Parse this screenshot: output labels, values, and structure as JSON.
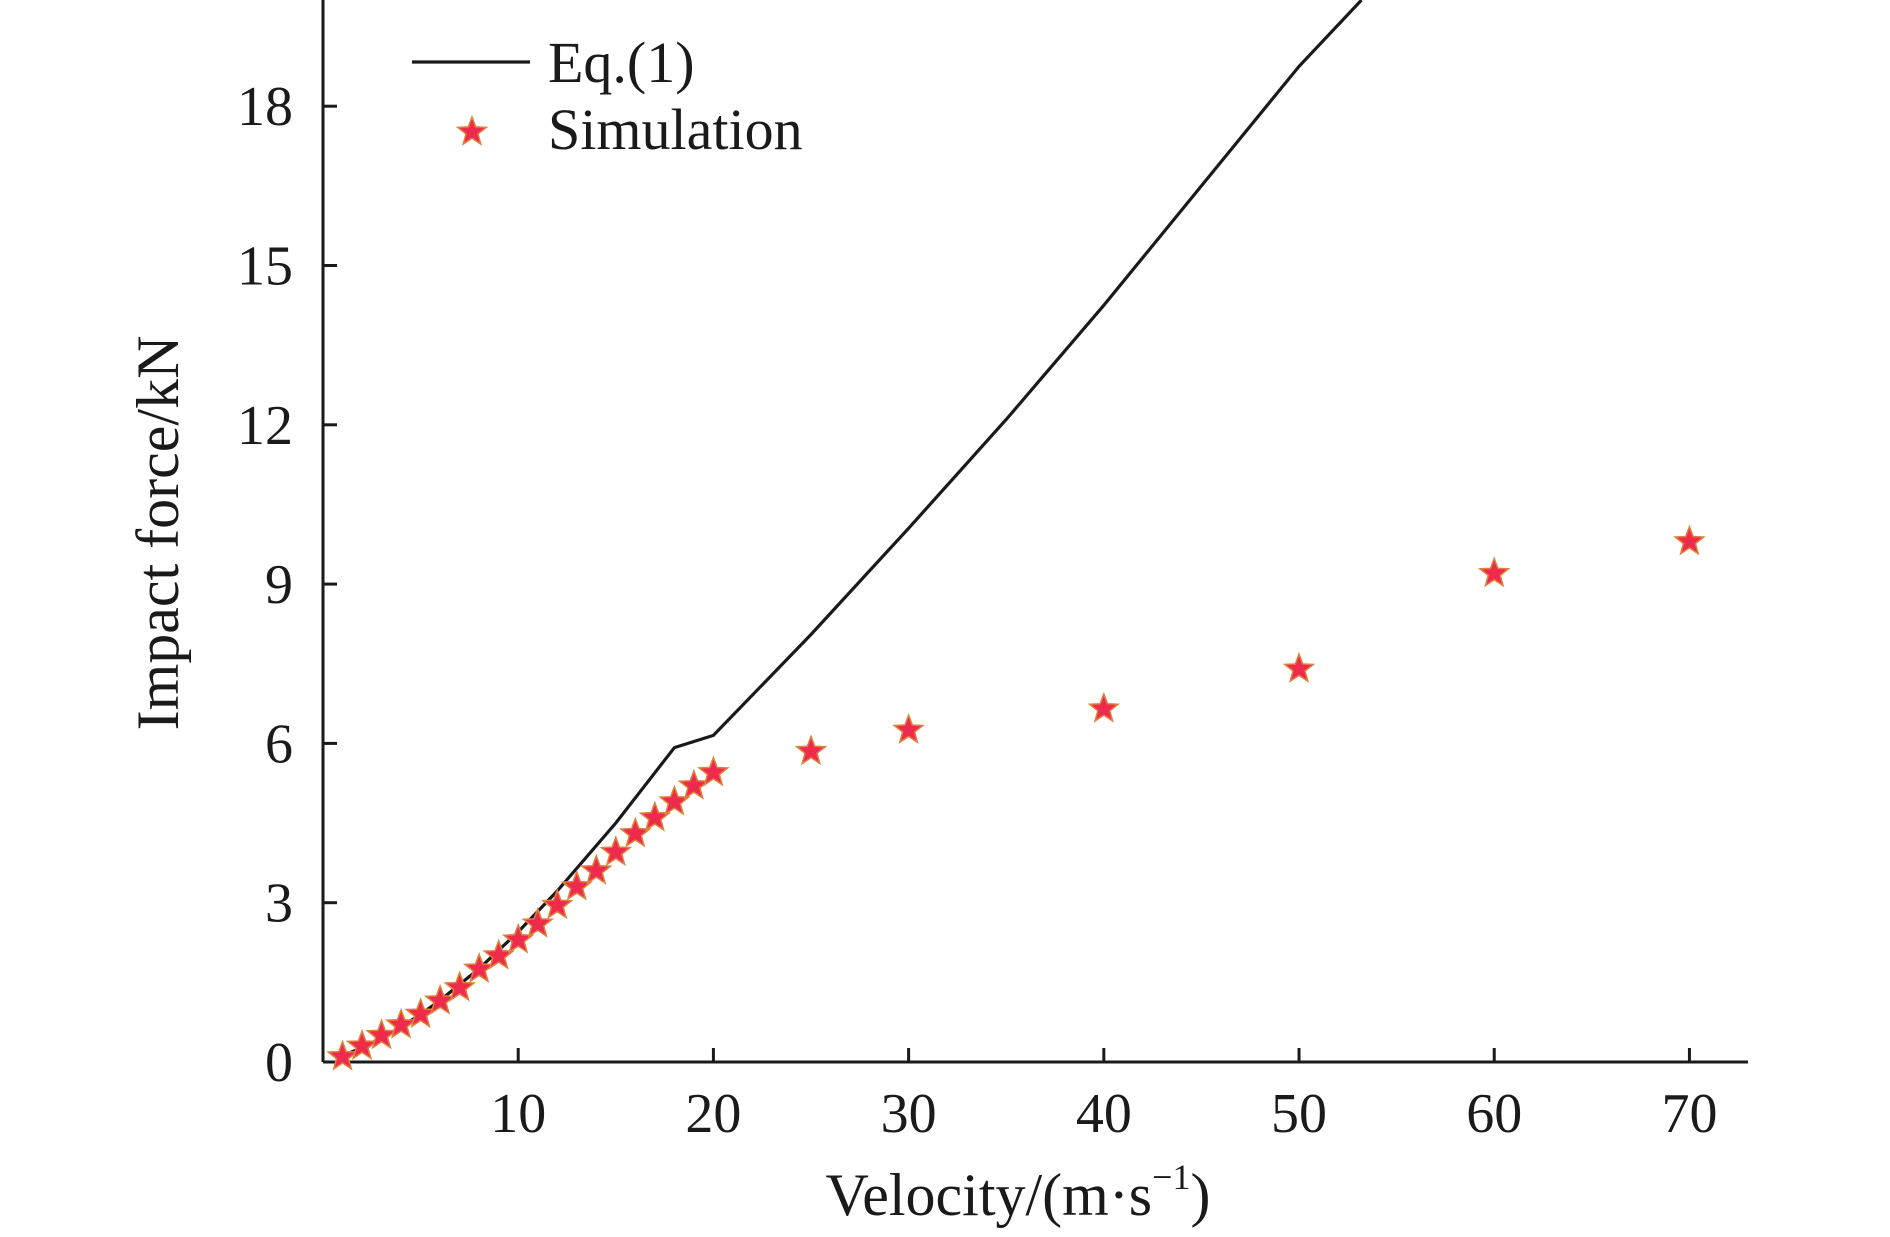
{
  "chart_data": {
    "type": "scatter",
    "title": "",
    "xlabel": "Velocity/(m·s",
    "xlabel_sup": "−1",
    "xlabel_close": ")",
    "ylabel": "Impact force/kN",
    "xlim": [
      0,
      73
    ],
    "ylim": [
      0,
      20
    ],
    "xticks": [
      10,
      20,
      30,
      40,
      50,
      60,
      70
    ],
    "yticks": [
      0,
      3,
      6,
      9,
      12,
      15,
      18
    ],
    "grid": false,
    "legend_position": "top-left",
    "series": [
      {
        "name": "Eq.(1)",
        "kind": "line",
        "color": "#1a1a1a",
        "x": [
          1,
          2,
          3,
          4,
          5,
          6,
          8,
          10,
          12,
          15,
          18,
          20,
          25,
          30,
          35,
          40,
          45,
          50,
          53.2
        ],
        "y": [
          0.12,
          0.27,
          0.45,
          0.66,
          0.9,
          1.16,
          1.76,
          2.45,
          3.22,
          4.5,
          5.92,
          6.15,
          8.05,
          10.05,
          12.1,
          14.25,
          16.5,
          18.75,
          20.0
        ]
      },
      {
        "name": "Simulation",
        "kind": "scatter",
        "marker": "star",
        "color": "#ee2a4d",
        "x": [
          1,
          2,
          3,
          4,
          5,
          6,
          7,
          8,
          9,
          10,
          11,
          12,
          13,
          14,
          15,
          16,
          17,
          18,
          19,
          20,
          25,
          30,
          40,
          50,
          60,
          70
        ],
        "y": [
          0.1,
          0.3,
          0.5,
          0.7,
          0.9,
          1.15,
          1.4,
          1.75,
          2.0,
          2.3,
          2.6,
          2.95,
          3.3,
          3.6,
          3.95,
          4.3,
          4.6,
          4.9,
          5.2,
          5.45,
          5.85,
          6.25,
          6.65,
          7.4,
          9.2,
          9.8
        ]
      }
    ]
  }
}
